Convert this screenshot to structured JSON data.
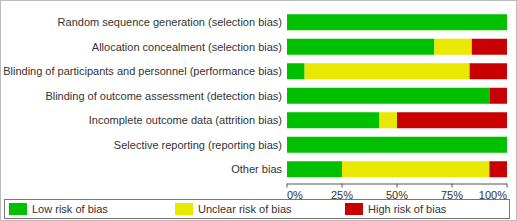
{
  "chart_data": {
    "type": "bar",
    "orientation": "horizontal",
    "stacked": true,
    "grid": false,
    "legend": "bottom",
    "categories": [
      "Random sequence generation (selection bias)",
      "Allocation concealment (selection bias)",
      "Blinding of participants and personnel (performance bias)",
      "Blinding of outcome assessment (detection bias)",
      "Incomplete outcome data (attrition bias)",
      "Selective reporting (reporting bias)",
      "Other bias"
    ],
    "series": [
      {
        "name": "Low risk of bias",
        "color": "#00c000",
        "values": [
          100,
          67,
          8,
          92,
          42,
          100,
          25
        ]
      },
      {
        "name": "Unclear risk of bias",
        "color": "#e8e800",
        "values": [
          0,
          17,
          75,
          0,
          8,
          0,
          67
        ]
      },
      {
        "name": "High risk of bias",
        "color": "#c80000",
        "values": [
          0,
          16,
          17,
          8,
          50,
          0,
          8
        ]
      }
    ],
    "xlim": [
      0,
      100
    ],
    "xticks": [
      {
        "value": 0,
        "label": "0%"
      },
      {
        "value": 25,
        "label": "25%"
      },
      {
        "value": 50,
        "label": "50%"
      },
      {
        "value": 75,
        "label": "75%"
      },
      {
        "value": 100,
        "label": "100%"
      }
    ]
  }
}
